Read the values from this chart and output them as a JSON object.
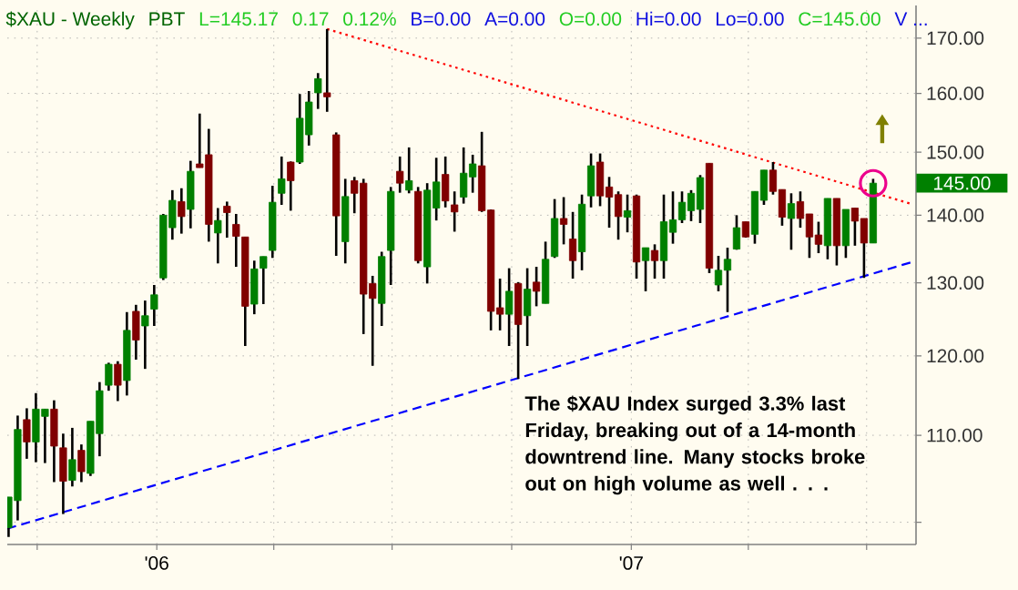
{
  "chart_data": {
    "type": "candlestick",
    "title": "$XAU - Weekly",
    "subtitle": "PBT",
    "annotations": [
      "L=145.17",
      "0.17",
      "0.12%",
      "B=0.00",
      "A=0.00",
      "O=0.00",
      "Hi=0.00",
      "Lo=0.00",
      "C=145.00",
      "V ...",
      "145.00",
      "The $XAU Index surged 3.3% last Friday, breaking out of a 14-month downtrend line.  Many stocks broke out on high volume as well . . ."
    ],
    "x": [
      "2005-09-09",
      "2005-09-16",
      "2005-09-23",
      "2005-09-30",
      "2005-10-07",
      "2005-10-14",
      "2005-10-21",
      "2005-10-28",
      "2005-11-04",
      "2005-11-11",
      "2005-11-18",
      "2005-11-25",
      "2005-12-02",
      "2005-12-09",
      "2005-12-16",
      "2005-12-23",
      "2005-12-30",
      "2006-01-06",
      "2006-01-13",
      "2006-01-20",
      "2006-01-27",
      "2006-02-03",
      "2006-02-10",
      "2006-02-17",
      "2006-02-24",
      "2006-03-03",
      "2006-03-10",
      "2006-03-17",
      "2006-03-24",
      "2006-03-31",
      "2006-04-07",
      "2006-04-14",
      "2006-04-21",
      "2006-04-28",
      "2006-05-05",
      "2006-05-12",
      "2006-05-19",
      "2006-05-26",
      "2006-06-02",
      "2006-06-09",
      "2006-06-16",
      "2006-06-23",
      "2006-06-30",
      "2006-07-07",
      "2006-07-14",
      "2006-07-21",
      "2006-07-28",
      "2006-08-04",
      "2006-08-11",
      "2006-08-18",
      "2006-08-25",
      "2006-09-01",
      "2006-09-08",
      "2006-09-15",
      "2006-09-22",
      "2006-09-29",
      "2006-10-06",
      "2006-10-13",
      "2006-10-20",
      "2006-10-27",
      "2006-11-03",
      "2006-11-10",
      "2006-11-17",
      "2006-11-24",
      "2006-12-01",
      "2006-12-08",
      "2006-12-15",
      "2006-12-22",
      "2006-12-29",
      "2007-01-05",
      "2007-01-12",
      "2007-01-19",
      "2007-01-26",
      "2007-02-02",
      "2007-02-09",
      "2007-02-16",
      "2007-02-23",
      "2007-03-02",
      "2007-03-09",
      "2007-03-16",
      "2007-03-23",
      "2007-03-30",
      "2007-04-06",
      "2007-04-13",
      "2007-04-20",
      "2007-04-27",
      "2007-05-04",
      "2007-05-11",
      "2007-05-18",
      "2007-05-25",
      "2007-06-01",
      "2007-06-08",
      "2007-06-15",
      "2007-06-22",
      "2007-06-29",
      "2007-07-06"
    ],
    "ohlc": [
      [
        99.4,
        102.8,
        98.4,
        102.8
      ],
      [
        102.4,
        112.4,
        100.2,
        110.7
      ],
      [
        111.9,
        113.3,
        107.2,
        109.2
      ],
      [
        109.2,
        115.2,
        106.8,
        113.2
      ],
      [
        112.3,
        113.2,
        106.7,
        113.2
      ],
      [
        113.2,
        114.3,
        104.5,
        108.7
      ],
      [
        108.5,
        110.2,
        100.9,
        104.6
      ],
      [
        104.7,
        110.9,
        104.0,
        107.1
      ],
      [
        108.2,
        108.9,
        104.5,
        105.7
      ],
      [
        105.5,
        111.7,
        105.2,
        111.7
      ],
      [
        110.2,
        116.6,
        107.5,
        115.5
      ],
      [
        116.2,
        119.1,
        115.5,
        118.9
      ],
      [
        118.9,
        119.3,
        114.2,
        116.2
      ],
      [
        116.8,
        125.9,
        114.9,
        123.4
      ],
      [
        126.0,
        126.9,
        119.5,
        122.1
      ],
      [
        124.0,
        127.5,
        118.3,
        125.4
      ],
      [
        126.3,
        129.7,
        124.0,
        128.3
      ],
      [
        130.7,
        140.2,
        130.4,
        140.0
      ],
      [
        138.1,
        143.9,
        136.3,
        142.3
      ],
      [
        142.1,
        144.2,
        137.2,
        139.8
      ],
      [
        140.9,
        148.6,
        138.0,
        146.9
      ],
      [
        148.1,
        156.5,
        147.5,
        147.5
      ],
      [
        149.6,
        153.9,
        136.0,
        138.6
      ],
      [
        137.3,
        141.1,
        132.8,
        139.2
      ],
      [
        141.4,
        142.1,
        136.6,
        140.4
      ],
      [
        138.6,
        140.2,
        132.3,
        136.8
      ],
      [
        136.7,
        136.7,
        121.3,
        126.7
      ],
      [
        127.0,
        133.2,
        125.6,
        132.0
      ],
      [
        132.1,
        133.8,
        127.0,
        133.8
      ],
      [
        134.7,
        144.6,
        133.6,
        142.0
      ],
      [
        143.4,
        149.3,
        141.6,
        145.7
      ],
      [
        148.4,
        148.5,
        140.7,
        145.4
      ],
      [
        148.4,
        159.9,
        148.1,
        155.7
      ],
      [
        152.9,
        160.4,
        151.1,
        158.5
      ],
      [
        160.1,
        163.6,
        157.3,
        162.6
      ],
      [
        160.1,
        171.7,
        156.8,
        159.4
      ],
      [
        152.9,
        153.3,
        133.9,
        139.9
      ],
      [
        136.0,
        145.7,
        132.8,
        142.9
      ],
      [
        145.4,
        146.0,
        140.3,
        143.4
      ],
      [
        145.0,
        145.7,
        122.9,
        128.4
      ],
      [
        129.9,
        131.0,
        118.7,
        127.8
      ],
      [
        127.1,
        134.5,
        124.0,
        133.8
      ],
      [
        134.7,
        144.4,
        129.7,
        143.7
      ],
      [
        146.9,
        149.3,
        143.5,
        145.0
      ],
      [
        143.9,
        150.8,
        143.4,
        145.4
      ],
      [
        143.7,
        144.4,
        132.8,
        133.2
      ],
      [
        132.3,
        145.0,
        129.9,
        143.9
      ],
      [
        141.1,
        149.1,
        139.2,
        145.2
      ],
      [
        146.4,
        149.3,
        141.2,
        142.2
      ],
      [
        141.6,
        143.7,
        137.5,
        140.5
      ],
      [
        142.8,
        150.8,
        141.8,
        146.6
      ],
      [
        146.0,
        149.6,
        143.5,
        148.1
      ],
      [
        147.8,
        153.4,
        140.5,
        140.7
      ],
      [
        140.8,
        140.9,
        123.4,
        126.0
      ],
      [
        126.5,
        130.6,
        123.4,
        125.6
      ],
      [
        125.6,
        132.1,
        121.3,
        128.8
      ],
      [
        129.9,
        130.1,
        117.0,
        124.2
      ],
      [
        125.4,
        132.1,
        121.3,
        129.1
      ],
      [
        130.1,
        132.3,
        126.7,
        128.8
      ],
      [
        127.1,
        136.0,
        127.1,
        133.4
      ],
      [
        133.8,
        142.5,
        133.6,
        139.5
      ],
      [
        139.5,
        142.8,
        135.6,
        138.6
      ],
      [
        136.4,
        140.5,
        130.6,
        133.2
      ],
      [
        134.5,
        143.2,
        131.8,
        141.7
      ],
      [
        143.0,
        149.8,
        141.2,
        147.8
      ],
      [
        148.4,
        149.8,
        141.4,
        143.0
      ],
      [
        144.4,
        146.0,
        138.1,
        142.8
      ],
      [
        143.2,
        143.7,
        136.3,
        139.8
      ],
      [
        139.7,
        143.2,
        137.4,
        140.7
      ],
      [
        143.0,
        143.2,
        130.6,
        133.0
      ],
      [
        133.2,
        135.1,
        128.8,
        135.1
      ],
      [
        134.7,
        135.6,
        130.6,
        133.2
      ],
      [
        133.2,
        143.2,
        130.6,
        139.0
      ],
      [
        137.4,
        143.7,
        135.7,
        139.3
      ],
      [
        139.3,
        143.7,
        138.8,
        142.0
      ],
      [
        140.7,
        143.9,
        139.1,
        143.4
      ],
      [
        140.9,
        146.3,
        138.8,
        145.9
      ],
      [
        148.2,
        148.2,
        131.4,
        132.1
      ],
      [
        129.7,
        133.9,
        128.8,
        131.8
      ],
      [
        131.8,
        135.1,
        125.9,
        133.4
      ],
      [
        134.9,
        140.0,
        134.8,
        138.1
      ],
      [
        139.0,
        139.0,
        136.6,
        136.7
      ],
      [
        137.1,
        143.7,
        135.7,
        143.7
      ],
      [
        142.3,
        147.1,
        141.6,
        147.1
      ],
      [
        147.1,
        148.4,
        143.2,
        143.7
      ],
      [
        144.0,
        144.0,
        138.4,
        139.7
      ],
      [
        139.5,
        143.4,
        134.8,
        141.8
      ],
      [
        142.1,
        143.7,
        138.1,
        139.5
      ],
      [
        140.2,
        140.2,
        133.6,
        136.7
      ],
      [
        137.0,
        139.0,
        134.3,
        135.6
      ],
      [
        135.4,
        142.6,
        133.4,
        142.6
      ],
      [
        142.6,
        142.6,
        132.5,
        135.4
      ],
      [
        135.4,
        140.9,
        133.6,
        140.9
      ],
      [
        141.1,
        141.1,
        135.4,
        139.1
      ],
      [
        139.5,
        139.5,
        130.7,
        135.8
      ],
      [
        135.8,
        145.7,
        135.8,
        145.0
      ]
    ],
    "series": [
      {
        "type": "line",
        "color": "#ff0000",
        "line_style": "dotted",
        "x": [
          "2006-05-12",
          "2007-08-05"
        ],
        "values": [
          171.7,
          141.7
        ]
      },
      {
        "type": "line",
        "color": "#0000ff",
        "line_style": "dashed",
        "x": [
          "2005-09-08",
          "2007-08-05"
        ],
        "values": [
          99.3,
          133.0
        ]
      }
    ],
    "xlim": [
      "2005-09-08",
      "2007-08-08"
    ],
    "xticks": [
      {
        "value": "2005-10-01",
        "label": null
      },
      {
        "value": "2006-01-01",
        "label": "'06"
      },
      {
        "value": "2006-04-01",
        "label": null
      },
      {
        "value": "2006-07-01",
        "label": null
      },
      {
        "value": "2006-10-01",
        "label": null
      },
      {
        "value": "2007-01-01",
        "label": "'07"
      },
      {
        "value": "2007-04-01",
        "label": null
      },
      {
        "value": "2007-07-01",
        "label": null
      }
    ],
    "ylim": [
      97.6,
      176.2
    ],
    "yticks": [
      {
        "value": 100,
        "label": null
      },
      {
        "value": 110,
        "label": "110.00"
      },
      {
        "value": 120,
        "label": "120.00"
      },
      {
        "value": 130,
        "label": "130.00"
      },
      {
        "value": 140,
        "label": "140.00"
      },
      {
        "value": 150,
        "label": "150.00"
      },
      {
        "value": 160,
        "label": "160.00"
      },
      {
        "value": 170,
        "label": "170.00"
      }
    ],
    "log": "y",
    "grid": true
  }
}
